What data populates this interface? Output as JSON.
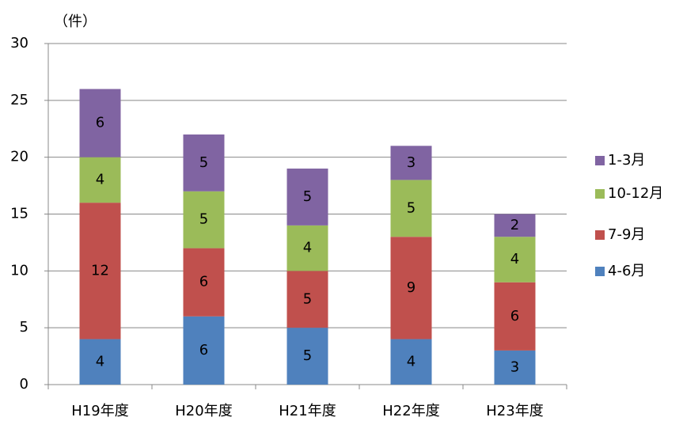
{
  "chart_data": {
    "type": "stacked_bar",
    "y_label": "（件）",
    "categories": [
      "H19年度",
      "H20年度",
      "H21年度",
      "H22年度",
      "H23年度"
    ],
    "series": [
      {
        "name": "4-6月",
        "color": "#4f81bd",
        "values": [
          4,
          6,
          5,
          4,
          3
        ]
      },
      {
        "name": "7-9月",
        "color": "#c0504d",
        "values": [
          12,
          6,
          5,
          9,
          6
        ]
      },
      {
        "name": "10-12月",
        "color": "#9bbb59",
        "values": [
          4,
          5,
          4,
          5,
          4
        ]
      },
      {
        "name": "1-3月",
        "color": "#8064a2",
        "values": [
          6,
          5,
          5,
          3,
          2
        ]
      }
    ],
    "ylim": [
      0,
      30
    ],
    "yticks": [
      0,
      5,
      10,
      15,
      20,
      25,
      30
    ],
    "grid": true,
    "legend": "right"
  }
}
